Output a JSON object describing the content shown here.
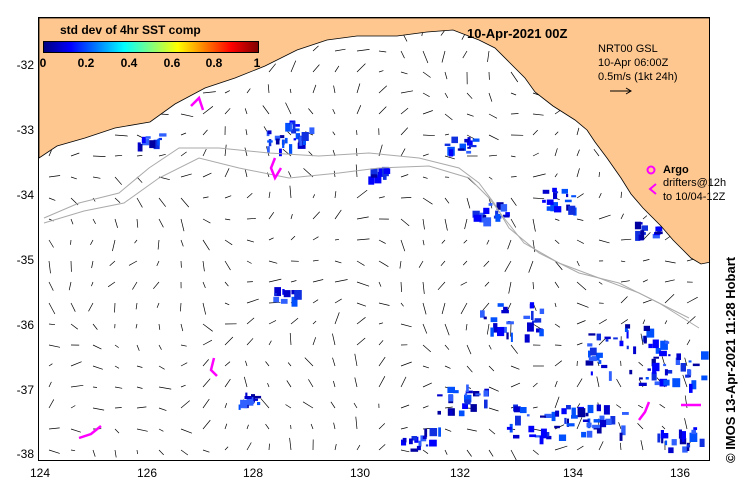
{
  "map": {
    "title_date": "10-Apr-2021 00Z",
    "y_ticks": [
      "-32",
      "-33",
      "-34",
      "-35",
      "-36",
      "-37",
      "-38"
    ],
    "x_ticks": [
      "124",
      "126",
      "128",
      "130",
      "132",
      "134",
      "136"
    ],
    "colorbar": {
      "title": "std dev of 4hr SST comp",
      "ticks": [
        "0",
        "0.2",
        "0.4",
        "0.6",
        "0.8",
        "1"
      ]
    },
    "info": {
      "line1": "NRT00 GSL",
      "line2": "10-Apr 06:00Z",
      "line3": "0.5m/s (1kt 24h)"
    },
    "argo": {
      "label": "Argo",
      "drifters_line1": "drifters@12h",
      "drifters_line2": "to 10/04-12Z"
    },
    "credit": "© IMOS 13-Apr-2021 11:28 Hobart",
    "colors": {
      "land": "#fec78f",
      "argo": "#ff00ff",
      "sst_blue": "#0000cc",
      "bathymetry": "#aaaaaa"
    }
  }
}
